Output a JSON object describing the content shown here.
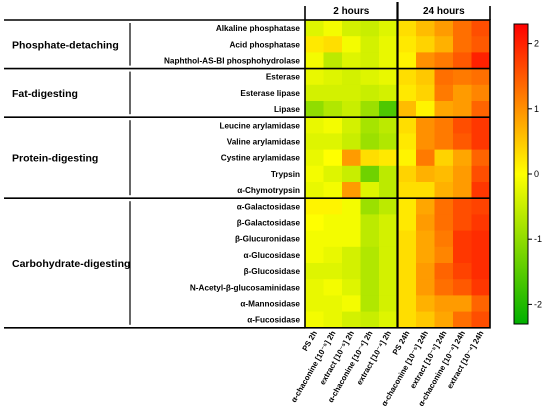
{
  "chart_data": {
    "type": "heatmap",
    "column_headers": [
      "2 hours",
      "24 hours"
    ],
    "columns": [
      "PS 2h",
      "α-chaconine [10⁻⁵] 2h",
      "extract [10⁻⁵] 2h",
      "α-chaconine [10⁻⁴] 2h",
      "extract [10⁻⁴] 2h",
      "PS 24h",
      "α-chaconine [10⁻⁵] 24h",
      "extract [10⁻⁵] 24h",
      "α-chaconine [10⁻⁴] 24h",
      "extract [10⁻⁴] 24h"
    ],
    "groups": [
      {
        "name": "Phosphate-detaching",
        "rows": [
          "Alkaline phosphatase",
          "Acid phosphatase",
          "Naphthol-AS-BI phosphohydrolase"
        ]
      },
      {
        "name": "Fat-digesting",
        "rows": [
          "Esterase",
          "Esterase lipase",
          "Lipase"
        ]
      },
      {
        "name": "Protein-digesting",
        "rows": [
          "Leucine arylamidase",
          "Valine arylamidase",
          "Cystine arylamidase",
          "Trypsin",
          "α-Chymotrypsin"
        ]
      },
      {
        "name": "Carbohydrate-digesting",
        "rows": [
          "α-Galactosidase",
          "β-Galactosidase",
          "β-Glucuronidase",
          "α-Glucosidase",
          "β-Glucosidase",
          "N-Acetyl-β-glucosaminidase",
          "α-Mannosidase",
          "α-Fucosidase"
        ]
      }
    ],
    "values": [
      [
        -0.3,
        -0.1,
        -0.4,
        -0.5,
        -0.3,
        0.3,
        0.6,
        0.9,
        1.3,
        1.6
      ],
      [
        0.2,
        0.3,
        -0.1,
        -0.4,
        -0.2,
        0.2,
        0.4,
        0.7,
        1.3,
        1.5
      ],
      [
        -0.1,
        -0.6,
        -0.3,
        -0.4,
        -0.2,
        0.1,
        1.0,
        1.2,
        1.5,
        2.0
      ],
      [
        -0.2,
        -0.3,
        -0.4,
        -0.3,
        -0.2,
        0.3,
        0.5,
        1.3,
        1.2,
        1.3
      ],
      [
        -0.4,
        -0.4,
        -0.4,
        -0.5,
        -0.4,
        0.2,
        0.4,
        1.2,
        0.9,
        1.1
      ],
      [
        -1.0,
        -0.7,
        -0.5,
        -0.9,
        -1.6,
        0.6,
        0.1,
        0.8,
        0.9,
        1.4
      ],
      [
        -0.2,
        -0.1,
        -0.4,
        -0.8,
        -0.6,
        0.3,
        1.0,
        1.2,
        1.6,
        1.8
      ],
      [
        -0.3,
        -0.3,
        -0.5,
        -0.9,
        -0.7,
        0.2,
        1.0,
        1.2,
        1.5,
        1.8
      ],
      [
        -0.2,
        0.0,
        0.9,
        0.3,
        0.2,
        0.1,
        1.2,
        0.4,
        0.8,
        1.4
      ],
      [
        -0.1,
        -0.3,
        -0.5,
        -1.3,
        -0.6,
        0.4,
        0.7,
        0.6,
        0.9,
        1.6
      ],
      [
        -0.2,
        -0.1,
        0.9,
        -0.3,
        -0.6,
        0.3,
        0.3,
        0.7,
        0.9,
        1.8
      ],
      [
        0.1,
        0.1,
        -0.1,
        -0.9,
        -0.6,
        0.2,
        0.8,
        1.3,
        1.6,
        1.7
      ],
      [
        0.0,
        -0.1,
        -0.1,
        -0.6,
        -0.4,
        0.2,
        0.9,
        1.3,
        1.6,
        1.8
      ],
      [
        -0.1,
        -0.1,
        -0.1,
        -0.6,
        -0.4,
        0.3,
        0.8,
        1.2,
        1.8,
        1.9
      ],
      [
        -0.1,
        -0.2,
        -0.4,
        -0.7,
        -0.4,
        0.3,
        0.8,
        1.1,
        1.8,
        1.9
      ],
      [
        -0.3,
        -0.3,
        -0.4,
        -0.7,
        -0.4,
        0.3,
        0.9,
        1.4,
        1.7,
        1.9
      ],
      [
        -0.2,
        -0.1,
        -0.3,
        -0.7,
        -0.4,
        0.3,
        0.9,
        1.3,
        1.5,
        1.8
      ],
      [
        -0.2,
        -0.2,
        -0.1,
        -0.7,
        -0.4,
        0.3,
        0.7,
        0.9,
        0.9,
        1.4
      ],
      [
        -0.1,
        -0.2,
        -0.4,
        -0.5,
        -0.3,
        0.3,
        0.5,
        0.8,
        1.3,
        1.6
      ]
    ],
    "colorbar": {
      "range": [
        -2.3,
        2.3
      ],
      "ticks": [
        -2,
        -1,
        0,
        1,
        2
      ],
      "tick_labels": [
        "-2",
        "-1",
        "0",
        "1",
        "2"
      ],
      "colors": {
        "low": "#00b000",
        "mid": "#ffff00",
        "high": "#ff0000"
      }
    }
  }
}
